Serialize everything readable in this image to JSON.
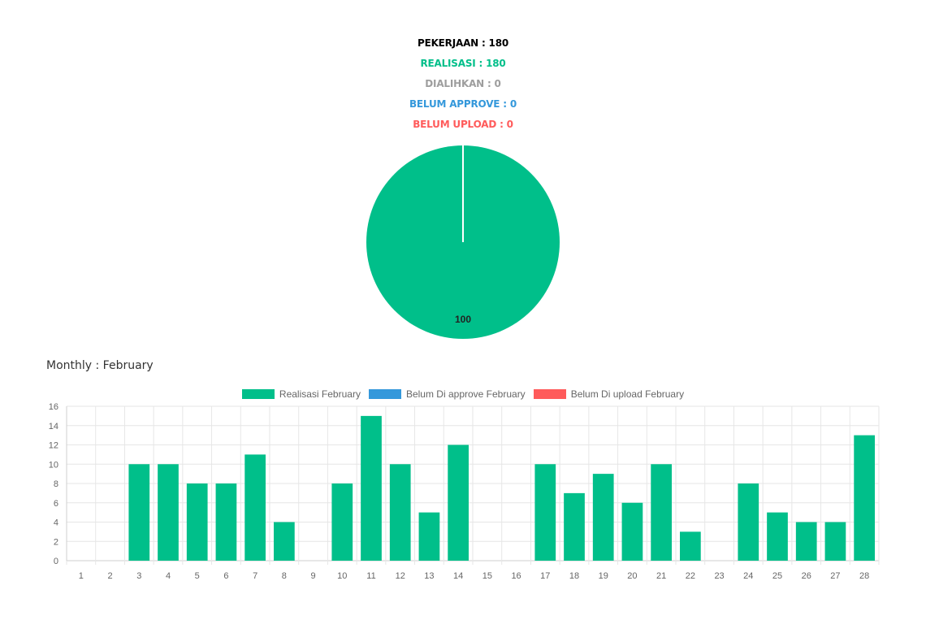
{
  "summary": {
    "pekerjaan": "PEKERJAAN : 180",
    "realisasi": "REALISASI : 180",
    "dialihkan": "DIALIHKAN : 0",
    "belum_approve": "BELUM APPROVE : 0",
    "belum_upload": "BELUM UPLOAD : 0"
  },
  "monthly_title": "Monthly : February",
  "colors": {
    "realisasi": "#00bf8a",
    "approve": "#3498db",
    "upload": "#ff5b5b",
    "dialihkan": "#9e9e9e",
    "pekerjaan": "#000000"
  },
  "chart_data": [
    {
      "type": "pie",
      "slices": [
        {
          "label": "",
          "value": 100,
          "data_label": "100",
          "color": "#00bf8a"
        }
      ]
    },
    {
      "type": "bar",
      "title": "",
      "xlabel": "",
      "ylabel": "",
      "ylim": [
        0,
        16
      ],
      "yticks": [
        0,
        2,
        4,
        6,
        8,
        10,
        12,
        14,
        16
      ],
      "grid": true,
      "legend_position": "top",
      "categories": [
        "1",
        "2",
        "3",
        "4",
        "5",
        "6",
        "7",
        "8",
        "9",
        "10",
        "11",
        "12",
        "13",
        "14",
        "15",
        "16",
        "17",
        "18",
        "19",
        "20",
        "21",
        "22",
        "23",
        "24",
        "25",
        "26",
        "27",
        "28"
      ],
      "series": [
        {
          "name": "Realisasi February",
          "color": "#00bf8a",
          "values": [
            0,
            0,
            10,
            10,
            8,
            8,
            11,
            4,
            0,
            8,
            15,
            10,
            5,
            12,
            0,
            0,
            10,
            7,
            9,
            6,
            10,
            3,
            0,
            8,
            5,
            4,
            4,
            13
          ]
        },
        {
          "name": "Belum Di approve February",
          "color": "#3498db",
          "values": [
            0,
            0,
            0,
            0,
            0,
            0,
            0,
            0,
            0,
            0,
            0,
            0,
            0,
            0,
            0,
            0,
            0,
            0,
            0,
            0,
            0,
            0,
            0,
            0,
            0,
            0,
            0,
            0
          ]
        },
        {
          "name": "Belum Di upload February",
          "color": "#ff5b5b",
          "values": [
            0,
            0,
            0,
            0,
            0,
            0,
            0,
            0,
            0,
            0,
            0,
            0,
            0,
            0,
            0,
            0,
            0,
            0,
            0,
            0,
            0,
            0,
            0,
            0,
            0,
            0,
            0,
            0
          ]
        }
      ]
    }
  ]
}
